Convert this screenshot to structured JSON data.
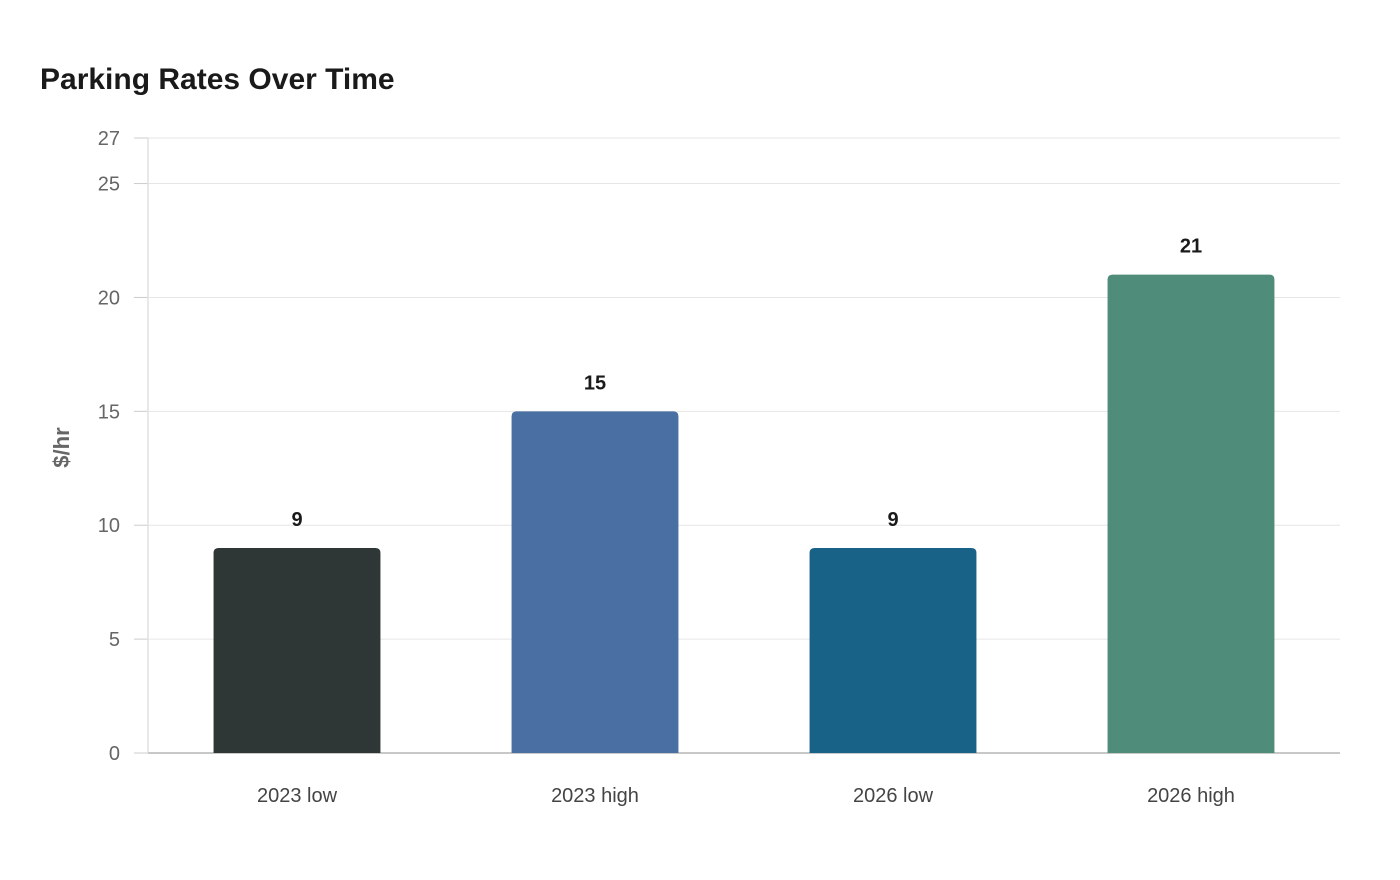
{
  "chart_data": {
    "type": "bar",
    "title": "Parking Rates Over Time",
    "xlabel": "",
    "ylabel": "$/hr",
    "categories": [
      "2023 low",
      "2023 high",
      "2026 low",
      "2026 high"
    ],
    "values": [
      9,
      15,
      9,
      21
    ],
    "colors": [
      "#2e3636",
      "#4a6fa3",
      "#186187",
      "#4f8c7a"
    ],
    "ylim": [
      0,
      27
    ],
    "yticks": [
      0,
      5,
      10,
      15,
      20,
      25,
      27
    ],
    "grid": true,
    "data_labels": true
  }
}
